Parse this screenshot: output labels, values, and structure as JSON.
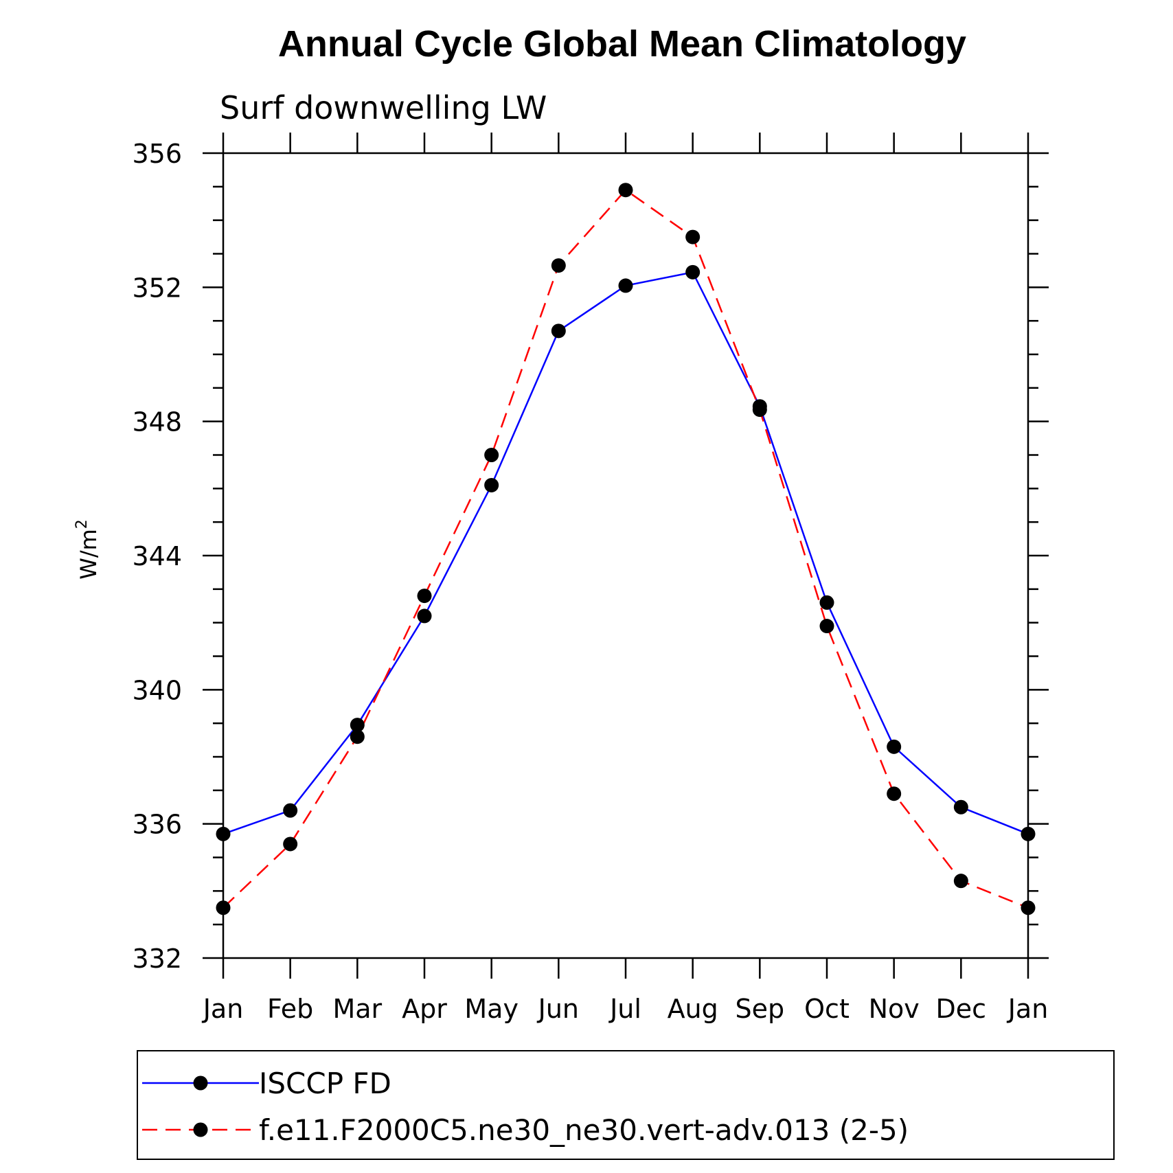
{
  "chart_data": {
    "type": "line",
    "title": "Annual Cycle Global Mean Climatology",
    "subtitle": "Surf downwelling LW",
    "ylabel": "W/m",
    "ylabel_superscript": "2",
    "xlabel": "",
    "categories": [
      "Jan",
      "Feb",
      "Mar",
      "Apr",
      "May",
      "Jun",
      "Jul",
      "Aug",
      "Sep",
      "Oct",
      "Nov",
      "Dec",
      "Jan"
    ],
    "ylim": [
      332,
      356
    ],
    "yticks": [
      "356",
      "352",
      "348",
      "344",
      "340",
      "336",
      "332"
    ],
    "series": [
      {
        "name": "ISCCP FD",
        "color": "#0000ff",
        "dash": "solid",
        "marker": "filled-circle",
        "values": [
          335.7,
          336.4,
          338.95,
          342.2,
          346.1,
          350.7,
          352.05,
          352.45,
          348.45,
          342.6,
          338.3,
          336.5,
          335.7
        ]
      },
      {
        "name": "f.e11.F2000C5.ne30_ne30.vert-adv.013 (2-5)",
        "color": "#ff0000",
        "dash": "dashed",
        "marker": "filled-circle",
        "values": [
          333.5,
          335.4,
          338.6,
          342.8,
          347.0,
          352.65,
          354.9,
          353.5,
          348.35,
          341.9,
          336.9,
          334.3,
          333.5
        ]
      }
    ],
    "grid": false,
    "legend_position": "bottom"
  }
}
